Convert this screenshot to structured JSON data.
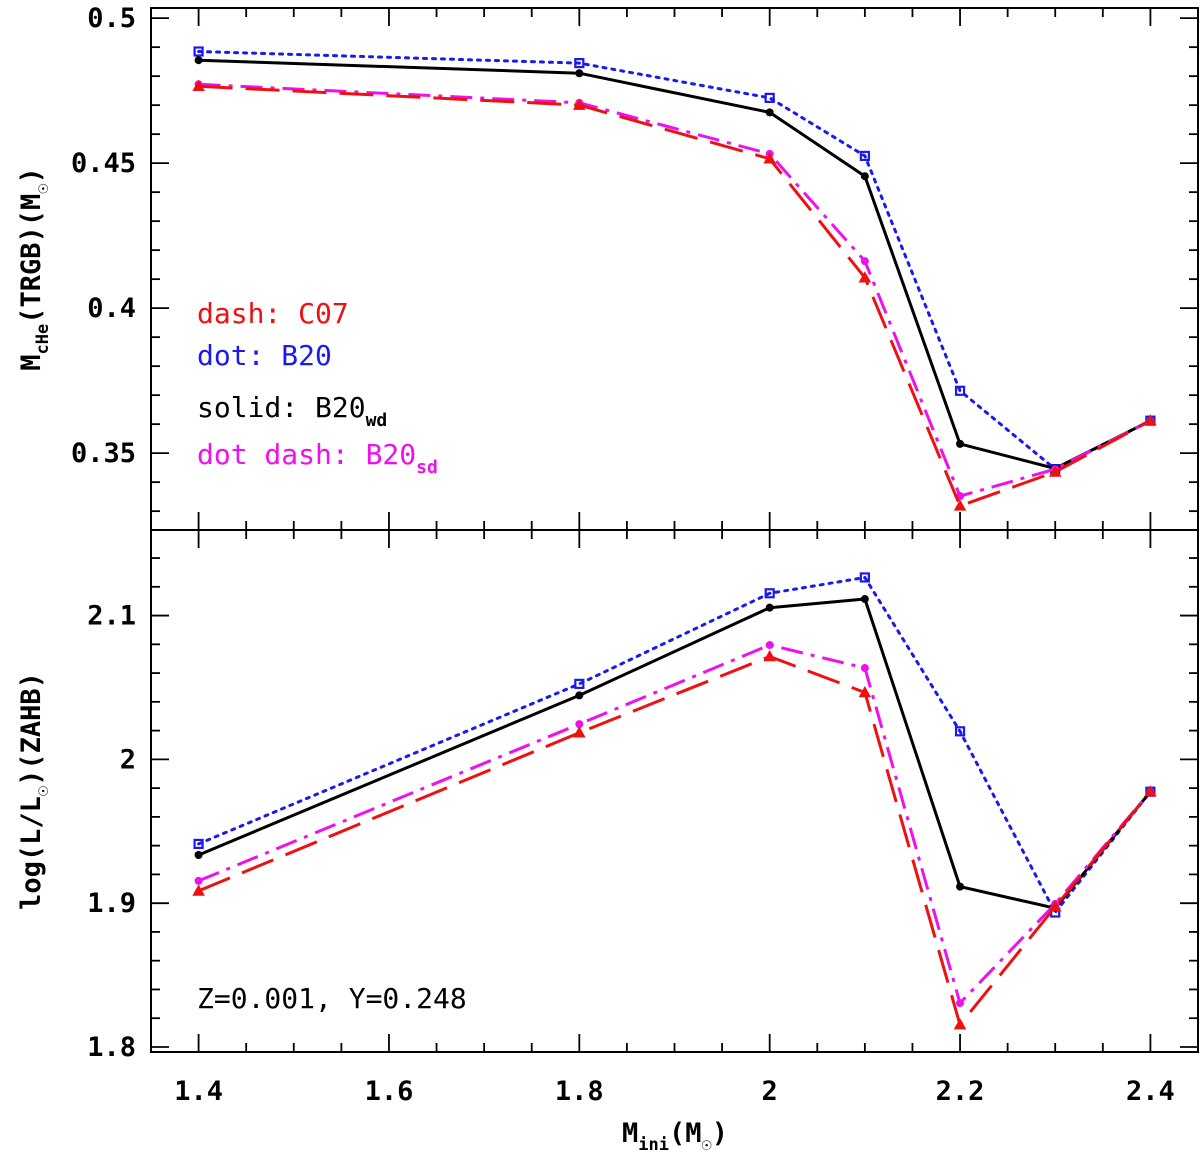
{
  "chart_data": {
    "type": "line",
    "x": [
      1.4,
      1.8,
      2.0,
      2.1,
      2.2,
      2.3,
      2.4
    ],
    "xlim": [
      1.35,
      2.45
    ],
    "xticks": [
      "1.4",
      "1.6",
      "1.8",
      "2",
      "2.2",
      "2.4"
    ],
    "xlabel": {
      "main": "M",
      "sub": "ini",
      "rest": "(M",
      "sun": "☉",
      "close": ")"
    },
    "colors": {
      "C07": "#ee1111",
      "B20": "#1a1aee",
      "B20wd": "#000000",
      "B20sd": "#ee11ee"
    },
    "panels": [
      {
        "name": "top",
        "ylim": [
          0.3235,
          0.5035
        ],
        "yticks": [
          "0.35",
          "0.4",
          "0.45",
          "0.5"
        ],
        "ylabel": {
          "main": "M",
          "sub": "cHe",
          "rest": "(TRGB)(M",
          "sun": "☉",
          "close": ")"
        },
        "series": [
          {
            "name": "B20",
            "values": [
              0.4885,
              0.4845,
              0.4725,
              0.4525,
              0.3715,
              0.3445,
              0.3612
            ]
          },
          {
            "name": "B20wd",
            "values": [
              0.4855,
              0.481,
              0.4675,
              0.4455,
              0.3532,
              0.3447,
              0.3612
            ]
          },
          {
            "name": "B20sd",
            "values": [
              0.4772,
              0.4708,
              0.4532,
              0.4162,
              0.3352,
              0.3445,
              0.3612
            ]
          },
          {
            "name": "C07",
            "values": [
              0.4765,
              0.47,
              0.4515,
              0.4105,
              0.3318,
              0.3435,
              0.3612
            ]
          }
        ]
      },
      {
        "name": "bottom",
        "ylim": [
          1.7965,
          2.1595
        ],
        "yticks": [
          "1.8",
          "1.9",
          "2",
          "2.1"
        ],
        "ylabel": {
          "main": "log(L/L",
          "sun": "☉",
          "rest": ")(ZAHB)"
        },
        "series": [
          {
            "name": "B20",
            "values": [
              1.9412,
              2.0525,
              2.1155,
              2.1265,
              2.0195,
              1.8935,
              1.9775
            ]
          },
          {
            "name": "B20wd",
            "values": [
              1.9335,
              2.0445,
              2.1055,
              2.1115,
              1.9115,
              1.8965,
              1.9775
            ]
          },
          {
            "name": "B20sd",
            "values": [
              1.9155,
              2.0245,
              2.0795,
              2.0635,
              1.8305,
              1.8995,
              1.9775
            ]
          },
          {
            "name": "C07",
            "values": [
              1.9085,
              2.0185,
              2.0715,
              2.0465,
              1.8155,
              1.8975,
              1.9775
            ]
          }
        ]
      }
    ],
    "legend": [
      {
        "series": "C07",
        "text": "dash: C07",
        "sub": ""
      },
      {
        "series": "B20",
        "text": "dot: B20",
        "sub": ""
      },
      {
        "series": "B20wd",
        "text": "solid: B20",
        "sub": "wd"
      },
      {
        "series": "B20sd",
        "text": "dot dash: B20",
        "sub": "sd"
      }
    ],
    "annotation": "Z=0.001, Y=0.248"
  }
}
